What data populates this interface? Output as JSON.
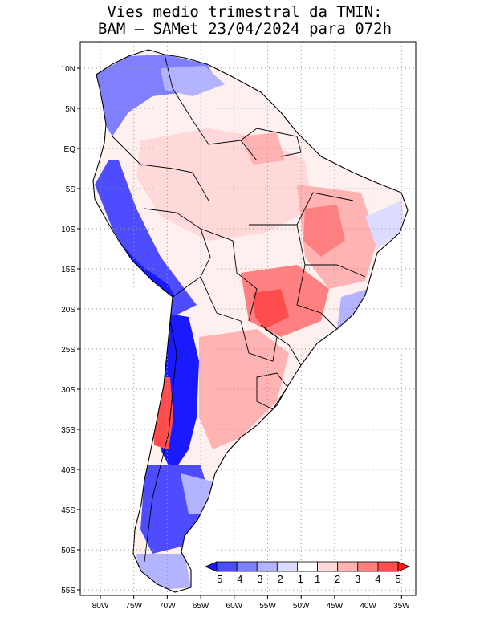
{
  "title": {
    "line1": "Vies medio trimestral da TMIN:",
    "line2": "BAM – SAMet 23/04/2024  para 072h"
  },
  "axes": {
    "lon_labels": [
      "80W",
      "75W",
      "70W",
      "65W",
      "60W",
      "55W",
      "50W",
      "45W",
      "40W",
      "35W"
    ],
    "lat_labels": [
      "10N",
      "5N",
      "EQ",
      "5S",
      "10S",
      "15S",
      "20S",
      "25S",
      "30S",
      "35S",
      "40S",
      "45S",
      "50S",
      "55S"
    ]
  },
  "colorbar": {
    "labels": [
      "−5",
      "−4",
      "−3",
      "−2",
      "−1",
      "1",
      "2",
      "3",
      "4",
      "5"
    ],
    "colors": [
      "#1a1aff",
      "#4d4dff",
      "#8080ff",
      "#b3b3ff",
      "#dcdcff",
      "#ffffff",
      "#ffd9d9",
      "#ffb3b3",
      "#ff8080",
      "#ff4d4d",
      "#ff1a1a"
    ]
  },
  "map": {
    "region": "South America",
    "field": "TMIN bias",
    "lon_range": [
      -83,
      -34
    ],
    "lat_range": [
      13,
      -56
    ]
  }
}
